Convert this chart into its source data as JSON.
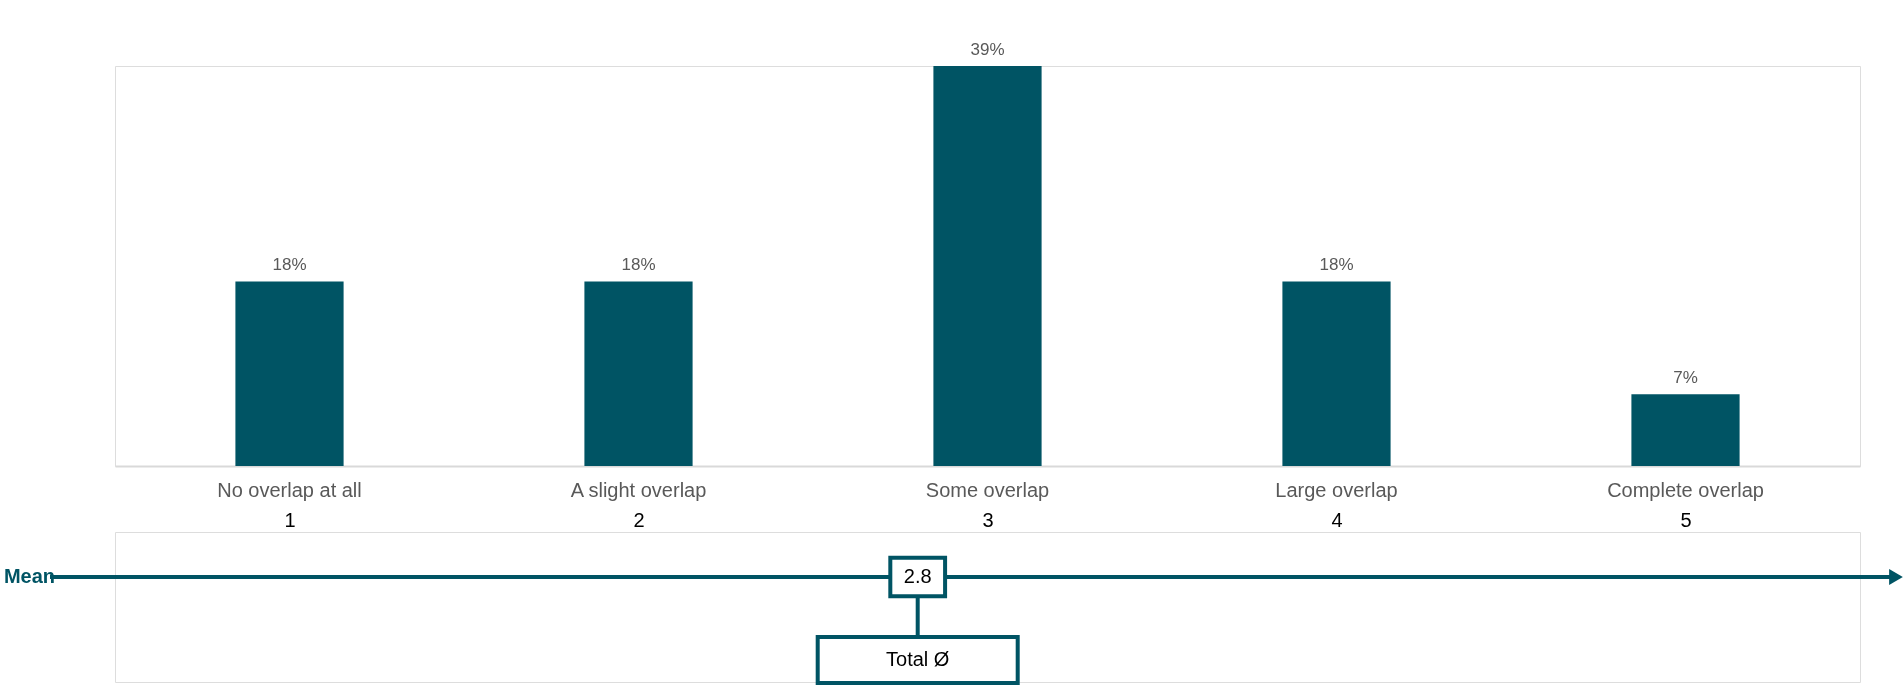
{
  "chart_data": {
    "type": "bar",
    "categories": [
      "No overlap at all",
      "A slight overlap",
      "Some overlap",
      "Large overlap",
      "Complete overlap"
    ],
    "values": [
      18,
      18,
      39,
      18,
      7
    ],
    "value_labels": [
      "18%",
      "18%",
      "39%",
      "18%",
      "7%"
    ],
    "color": "#005464",
    "x2lim": [
      0.5,
      5.5
    ],
    "x2ticks": [
      1,
      2,
      3,
      4,
      5
    ],
    "x2label": "Mean",
    "ref_lines": [
      {
        "axis": "x2",
        "value": 2.8,
        "label": "Total Ø"
      }
    ],
    "annotations": [
      "2.8"
    ]
  }
}
